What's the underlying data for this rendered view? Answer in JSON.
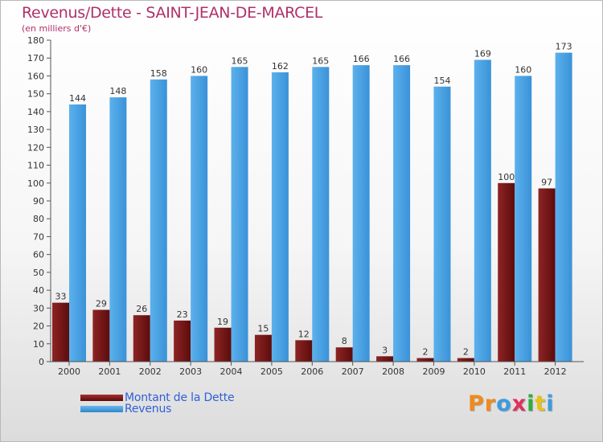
{
  "header": {
    "title": "Revenus/Dette - SAINT-JEAN-DE-MARCEL",
    "subtitle": "(en milliers d'€)"
  },
  "colors": {
    "debt": "#7a1a1a",
    "revenue": "#4aa3e4",
    "title": "#b0306a",
    "legend_text": "#3060d8"
  },
  "chart_data": {
    "type": "bar",
    "categories": [
      "2000",
      "2001",
      "2002",
      "2003",
      "2004",
      "2005",
      "2006",
      "2007",
      "2008",
      "2009",
      "2010",
      "2011",
      "2012"
    ],
    "series": [
      {
        "name": "Montant de la Dette",
        "values": [
          33,
          29,
          26,
          23,
          19,
          15,
          12,
          8,
          3,
          2,
          2,
          100,
          97
        ]
      },
      {
        "name": "Revenus",
        "values": [
          144,
          148,
          158,
          160,
          165,
          162,
          165,
          166,
          166,
          154,
          169,
          160,
          173
        ]
      }
    ],
    "ylim": [
      0,
      180
    ],
    "yticks": [
      0,
      10,
      20,
      30,
      40,
      50,
      60,
      70,
      80,
      90,
      100,
      110,
      120,
      130,
      140,
      150,
      160,
      170,
      180
    ],
    "grid": false,
    "legend_position": "bottom-left"
  },
  "legend": {
    "debt_label": "Montant de la Dette",
    "revenue_label": "Revenus"
  },
  "logo": {
    "text": "Proxiti",
    "letter_colors": [
      "#f08a1c",
      "#f08a1c",
      "#3d9be0",
      "#e0305a",
      "#2fae3c",
      "#e6c218",
      "#3d9be0"
    ]
  }
}
